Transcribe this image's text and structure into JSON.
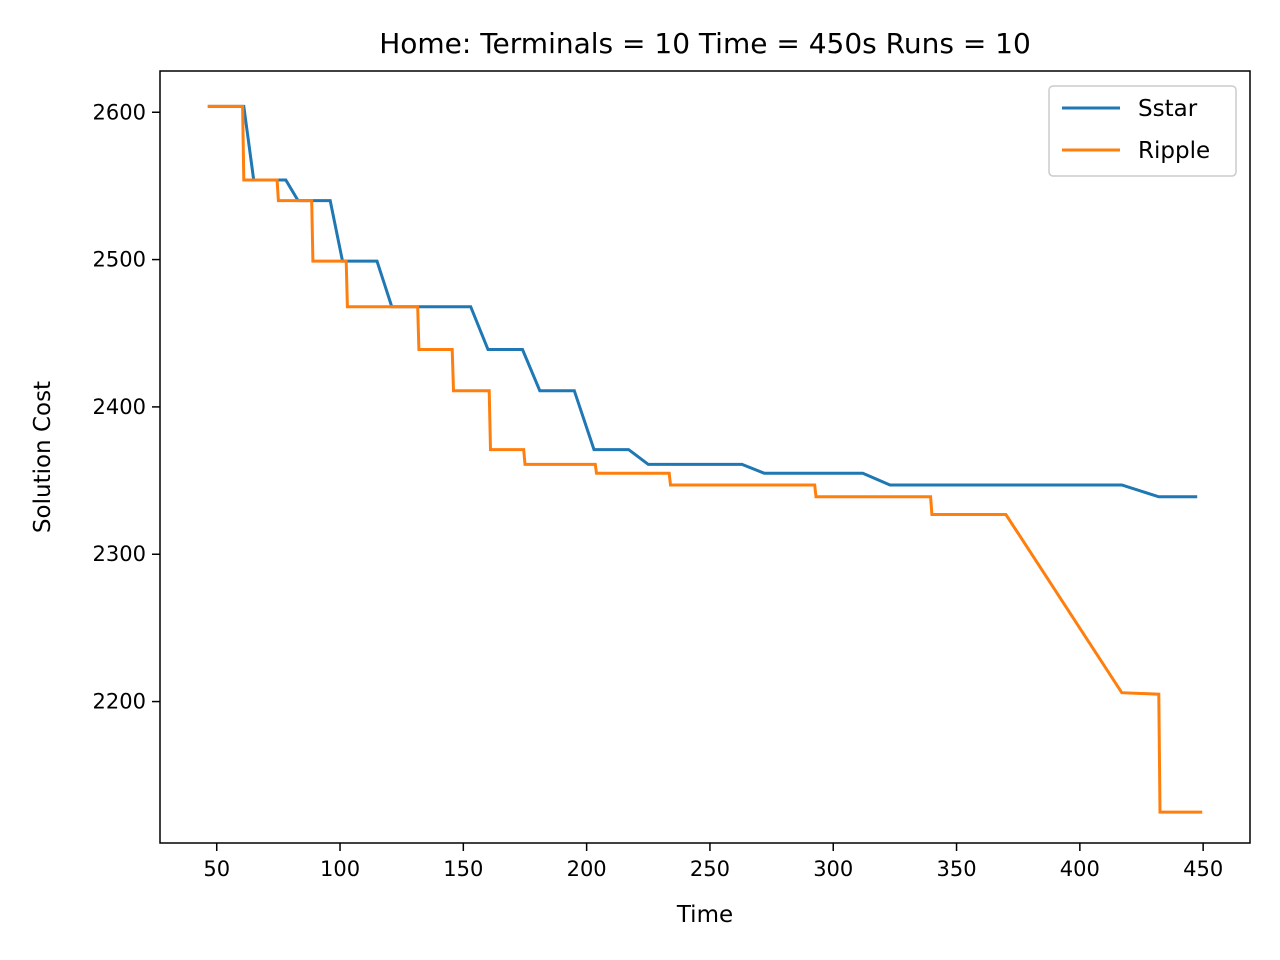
{
  "chart_data": {
    "type": "line",
    "title": "Home:  Terminals = 10  Time = 450s  Runs = 10",
    "xlabel": "Time",
    "ylabel": "Solution Cost",
    "xlim": [
      27,
      469
    ],
    "ylim": [
      2104,
      2628
    ],
    "xticks": [
      50,
      100,
      150,
      200,
      250,
      300,
      350,
      400,
      450
    ],
    "yticks": [
      2200,
      2300,
      2400,
      2500,
      2600
    ],
    "grid": false,
    "legend_position": "top-right",
    "series": [
      {
        "name": "Sstar",
        "color": "#1f77b4",
        "points": [
          [
            47,
            2604
          ],
          [
            61,
            2604
          ],
          [
            65,
            2554
          ],
          [
            78,
            2554
          ],
          [
            83,
            2540
          ],
          [
            96,
            2540
          ],
          [
            101,
            2499
          ],
          [
            115,
            2499
          ],
          [
            121,
            2468
          ],
          [
            153,
            2468
          ],
          [
            160,
            2439
          ],
          [
            174,
            2439
          ],
          [
            181,
            2411
          ],
          [
            195,
            2411
          ],
          [
            203,
            2371
          ],
          [
            217,
            2371
          ],
          [
            225,
            2361
          ],
          [
            263,
            2361
          ],
          [
            272,
            2355
          ],
          [
            312,
            2355
          ],
          [
            323,
            2347
          ],
          [
            417,
            2347
          ],
          [
            432,
            2339
          ],
          [
            447,
            2339
          ]
        ]
      },
      {
        "name": "Ripple",
        "color": "#ff7f0e",
        "points": [
          [
            47,
            2604
          ],
          [
            60.5,
            2604
          ],
          [
            61,
            2554
          ],
          [
            74.5,
            2554
          ],
          [
            75,
            2540
          ],
          [
            88.5,
            2540
          ],
          [
            89,
            2499
          ],
          [
            102.5,
            2499
          ],
          [
            103,
            2468
          ],
          [
            131.5,
            2468
          ],
          [
            132,
            2439
          ],
          [
            145.5,
            2439
          ],
          [
            146,
            2411
          ],
          [
            160.5,
            2411
          ],
          [
            161,
            2371
          ],
          [
            174.5,
            2371
          ],
          [
            175,
            2361
          ],
          [
            203.5,
            2361
          ],
          [
            204,
            2355
          ],
          [
            233.5,
            2355
          ],
          [
            234,
            2347
          ],
          [
            292.5,
            2347
          ],
          [
            293,
            2339
          ],
          [
            339.5,
            2339
          ],
          [
            340,
            2327
          ],
          [
            370,
            2327
          ],
          [
            417,
            2206
          ],
          [
            432,
            2205
          ],
          [
            432.5,
            2125
          ],
          [
            449,
            2125
          ]
        ]
      }
    ]
  }
}
